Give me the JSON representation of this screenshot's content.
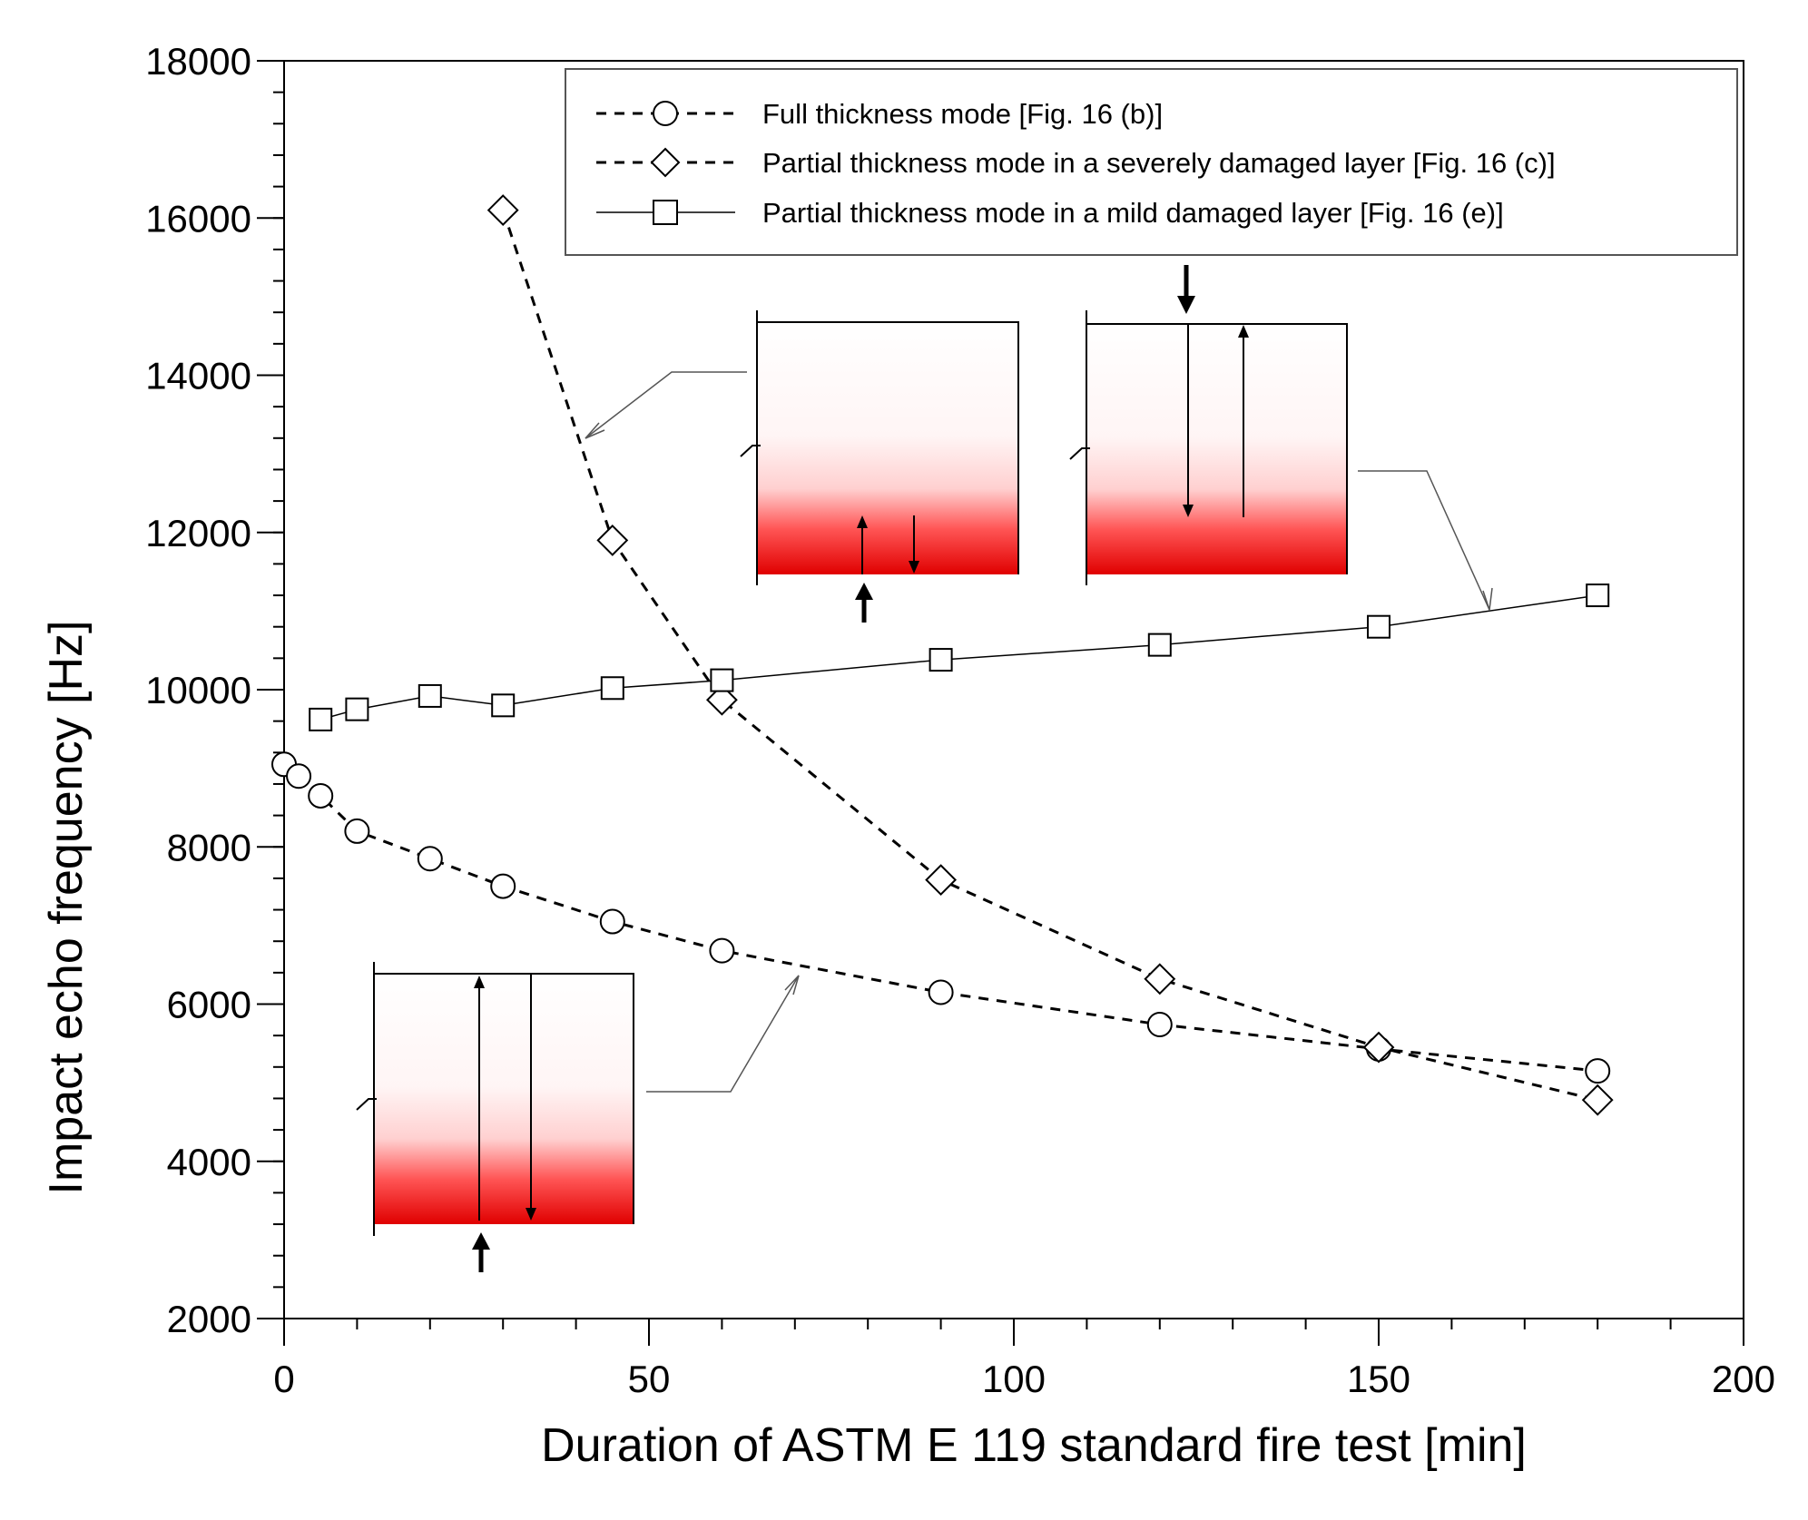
{
  "chart_data": {
    "type": "line",
    "xlabel": "Duration of ASTM E 119 standard fire test [min]",
    "ylabel": "Impact echo frequency [Hz]",
    "xlim": [
      0,
      200
    ],
    "ylim": [
      2000,
      18000
    ],
    "xticks": [
      0,
      50,
      100,
      150,
      200
    ],
    "yticks": [
      2000,
      4000,
      6000,
      8000,
      10000,
      12000,
      14000,
      16000,
      18000
    ],
    "x_minor_step": 10,
    "y_minor_step": 400,
    "grid": false,
    "legend_position": "top-right",
    "series": [
      {
        "name": "Full thickness mode [Fig. 16 (b)]",
        "marker": "circle",
        "line": "dashed",
        "x": [
          0,
          2,
          5,
          10,
          20,
          30,
          45,
          60,
          90,
          120,
          150,
          180
        ],
        "y": [
          9050,
          8900,
          8650,
          8200,
          7850,
          7500,
          7050,
          6680,
          6150,
          5740,
          5430,
          5150
        ]
      },
      {
        "name": "Partial thickness mode in a severely damaged layer [Fig. 16 (c)]",
        "marker": "diamond",
        "line": "dashed",
        "x": [
          30,
          45,
          60,
          90,
          120,
          150,
          180
        ],
        "y": [
          16100,
          11900,
          9870,
          7580,
          6320,
          5450,
          4780
        ]
      },
      {
        "name": "Partial thickness mode in a mild damaged layer [Fig. 16 (e)]",
        "marker": "square",
        "line": "solid",
        "x": [
          5,
          10,
          20,
          30,
          45,
          60,
          90,
          120,
          150,
          180
        ],
        "y": [
          9620,
          9750,
          9920,
          9800,
          10020,
          10120,
          10380,
          10570,
          10800,
          11200
        ]
      }
    ]
  }
}
